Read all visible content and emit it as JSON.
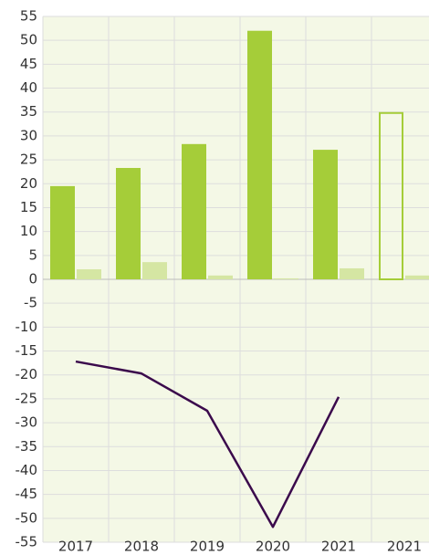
{
  "chart_data": {
    "type": "bar",
    "categories": [
      "2017",
      "2018",
      "2019",
      "2020",
      "2021",
      "2021"
    ],
    "series": [
      {
        "type": "bar",
        "color": "#a5cd39",
        "values": [
          19.5,
          23.3,
          28.3,
          52,
          27.1,
          34.8
        ],
        "outlined": [
          false,
          false,
          false,
          false,
          false,
          true
        ]
      },
      {
        "type": "bar",
        "color": "#d5e6a3",
        "values": [
          2.1,
          3.6,
          0.8,
          0.2,
          2.3,
          0.8
        ]
      },
      {
        "type": "line",
        "color": "#3b0a4c",
        "values": [
          -17.2,
          -19.7,
          -27.5,
          -51.8,
          -24.6,
          null
        ]
      }
    ],
    "ylim": [
      -55,
      55
    ],
    "yticks": [
      -55,
      -50,
      -45,
      -40,
      -35,
      -30,
      -25,
      -20,
      -15,
      -10,
      -5,
      0,
      5,
      10,
      15,
      20,
      25,
      30,
      35,
      40,
      45,
      50,
      55
    ],
    "grid": true
  }
}
